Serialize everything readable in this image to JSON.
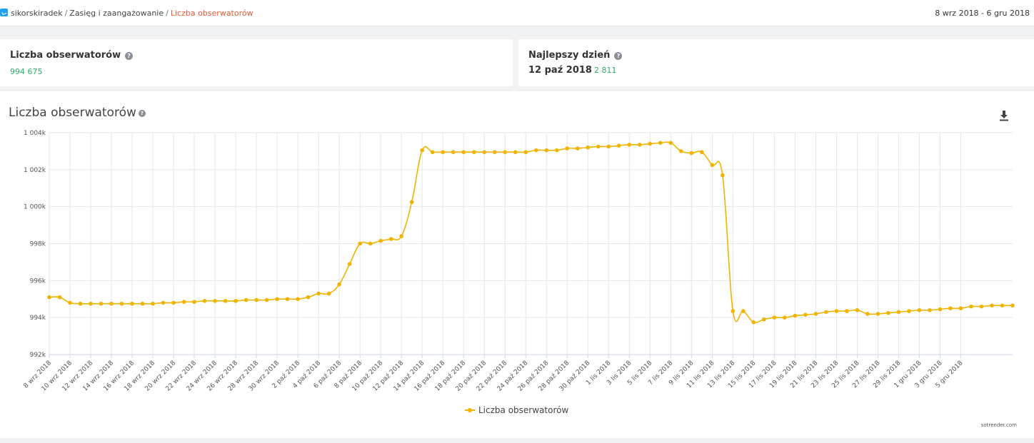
{
  "breadcrumb": {
    "account": "sikorskiradek",
    "section": "Zasięg i zaangażowanie",
    "current": "Liczba obserwatorów",
    "separator": "/"
  },
  "date_range": "8 wrz 2018 - 6 gru 2018",
  "summary": {
    "followers_title": "Liczba obserwatorów",
    "followers_value": "994 675",
    "best_day_title": "Najlepszy dzień",
    "best_day_date": "12 paź 2018",
    "best_day_value": "2 811"
  },
  "help_glyph": "?",
  "chart_card": {
    "title": "Liczba obserwatorów",
    "credit": "sotrender.com",
    "download_icon": "download-icon"
  },
  "colors": {
    "series": "#f0b400",
    "accent": "#e05a35",
    "positive": "#2fae6b",
    "twitter": "#1da1f2"
  },
  "chart_data": {
    "type": "line",
    "title": "Liczba obserwatorów",
    "xlabel": "",
    "ylabel": "",
    "ylim": [
      992000,
      1004000
    ],
    "yticks": [
      992000,
      994000,
      996000,
      998000,
      1000000,
      1002000,
      1004000
    ],
    "ytick_labels": [
      "992k",
      "994k",
      "996k",
      "998k",
      "1 000k",
      "1 002k",
      "1 004k"
    ],
    "xtick_labels": [
      "8 wrz 2018",
      "10 wrz 2018",
      "12 wrz 2018",
      "14 wrz 2018",
      "16 wrz 2018",
      "18 wrz 2018",
      "20 wrz 2018",
      "22 wrz 2018",
      "24 wrz 2018",
      "26 wrz 2018",
      "28 wrz 2018",
      "30 wrz 2018",
      "2 paź 2018",
      "4 paź 2018",
      "6 paź 2018",
      "8 paź 2018",
      "10 paź 2018",
      "12 paź 2018",
      "14 paź 2018",
      "16 paź 2018",
      "18 paź 2018",
      "20 paź 2018",
      "22 paź 2018",
      "24 paź 2018",
      "26 paź 2018",
      "28 paź 2018",
      "30 paź 2018",
      "1 lis 2018",
      "3 lis 2018",
      "5 lis 2018",
      "7 lis 2018",
      "9 lis 2018",
      "11 lis 2018",
      "13 lis 2018",
      "15 lis 2018",
      "17 lis 2018",
      "19 lis 2018",
      "21 lis 2018",
      "23 lis 2018",
      "25 lis 2018",
      "27 lis 2018",
      "29 lis 2018",
      "1 gru 2018",
      "3 gru 2018",
      "5 gru 2018"
    ],
    "grid": true,
    "legend": "bottom-center",
    "series": [
      {
        "name": "Liczba obserwatorów",
        "values": [
          995100,
          995100,
          994800,
          994750,
          994750,
          994750,
          994750,
          994750,
          994750,
          994750,
          994750,
          994800,
          994800,
          994850,
          994850,
          994900,
          994900,
          994900,
          994900,
          994950,
          994950,
          994950,
          995000,
          995000,
          995000,
          995100,
          995300,
          995300,
          995800,
          996900,
          998000,
          998000,
          998150,
          998250,
          998400,
          1000250,
          1003050,
          1002950,
          1002950,
          1002950,
          1002950,
          1002950,
          1002950,
          1002950,
          1002950,
          1002950,
          1002950,
          1003050,
          1003050,
          1003050,
          1003150,
          1003150,
          1003200,
          1003250,
          1003250,
          1003300,
          1003350,
          1003350,
          1003400,
          1003450,
          1003450,
          1003000,
          1002900,
          1002950,
          1002250,
          1001700,
          994350,
          994350,
          993750,
          993900,
          994000,
          994000,
          994100,
          994150,
          994200,
          994300,
          994350,
          994350,
          994400,
          994200,
          994200,
          994250,
          994300,
          994350,
          994400,
          994400,
          994450,
          994500,
          994500,
          994600,
          994600,
          994650,
          994650,
          994650
        ]
      }
    ]
  }
}
